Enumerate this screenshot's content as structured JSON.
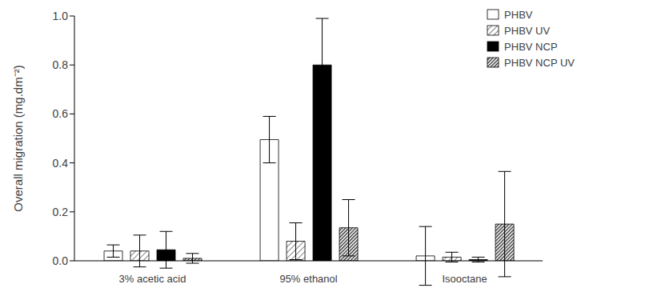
{
  "chart_data": {
    "type": "bar",
    "y_label": "Overall migration (mg.dm⁻²)",
    "categories": [
      "3% acetic acid",
      "95% ethanol",
      "Isooctane"
    ],
    "series": [
      {
        "name": "PHBV",
        "color": "#ffffff",
        "values": [
          0.04,
          0.495,
          0.02
        ],
        "errors": [
          0.025,
          0.095,
          0.12
        ]
      },
      {
        "name": "PHBV UV",
        "color": "#7f7f7f",
        "values": [
          0.04,
          0.08,
          0.015
        ],
        "errors": [
          0.065,
          0.075,
          0.02
        ]
      },
      {
        "name": "PHBV NCP",
        "color": "#000000",
        "values": [
          0.045,
          0.8,
          0.005
        ],
        "errors": [
          0.075,
          0.19,
          0.01
        ]
      },
      {
        "name": "PHBV NCP UV",
        "color": "#262626",
        "values": [
          0.01,
          0.135,
          0.15
        ],
        "errors": [
          0.02,
          0.115,
          0.215
        ]
      }
    ],
    "ylim": [
      0,
      1
    ],
    "yticks": [
      {
        "value": 0,
        "label": "0.0"
      },
      {
        "value": 0.2,
        "label": "0.2"
      },
      {
        "value": 0.4,
        "label": "0.4"
      },
      {
        "value": 0.6,
        "label": "0.6"
      },
      {
        "value": 0.8,
        "label": "0.8"
      },
      {
        "value": 1,
        "label": "1.0"
      }
    ],
    "grid": false,
    "legend": "top-right"
  }
}
